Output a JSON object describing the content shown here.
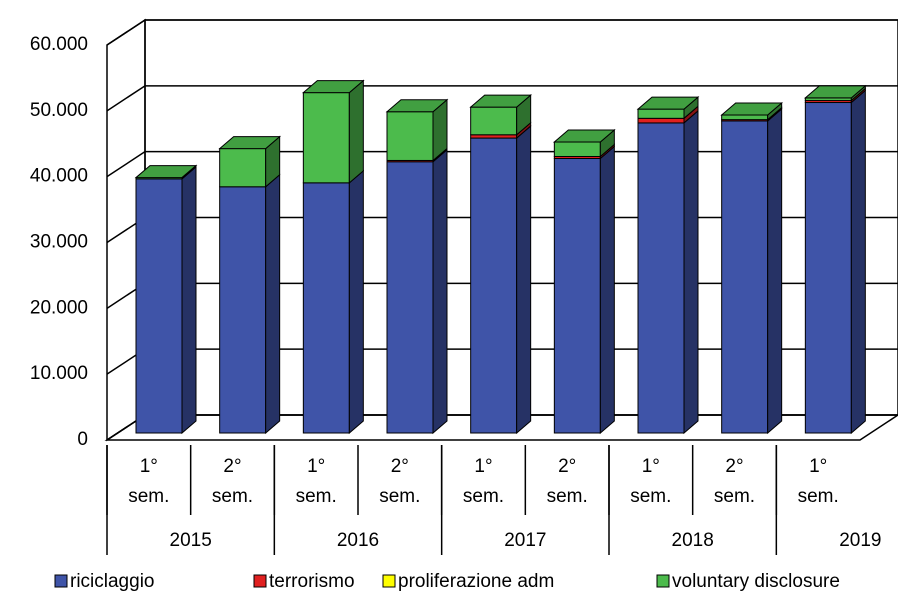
{
  "chart_data": {
    "type": "bar3d_stacked",
    "categories": [
      [
        "1°",
        "sem."
      ],
      [
        "2°",
        "sem."
      ],
      [
        "1°",
        "sem."
      ],
      [
        "2°",
        "sem."
      ],
      [
        "1°",
        "sem."
      ],
      [
        "2°",
        "sem."
      ],
      [
        "1°",
        "sem."
      ],
      [
        "2°",
        "sem."
      ],
      [
        "1°",
        "sem."
      ]
    ],
    "groups": [
      {
        "name": "2015",
        "size": 2
      },
      {
        "name": "2016",
        "size": 2
      },
      {
        "name": "2017",
        "size": 2
      },
      {
        "name": "2018",
        "size": 2
      },
      {
        "name": "2019",
        "size": 1
      }
    ],
    "series": [
      {
        "name": "riciclaggio",
        "color": "#3f54a8",
        "values": [
          38600,
          37400,
          38000,
          41200,
          44800,
          41700,
          47100,
          47400,
          50200
        ]
      },
      {
        "name": "terrorismo",
        "color": "#e02020",
        "values": [
          0,
          0,
          0,
          200,
          500,
          300,
          700,
          200,
          300
        ]
      },
      {
        "name": "proliferazione adm",
        "color": "#ffff00",
        "values": [
          0,
          0,
          0,
          0,
          0,
          0,
          0,
          0,
          0
        ]
      },
      {
        "name": "voluntary disclosure",
        "color": "#4cbb4c",
        "values": [
          200,
          5800,
          13700,
          7400,
          4200,
          2200,
          1400,
          700,
          400
        ]
      }
    ],
    "ylim": [
      0,
      60000
    ],
    "yticks": [
      0,
      {
        "value": 10000,
        "label": "10.000"
      },
      {
        "value": 20000,
        "label": "20.000"
      },
      {
        "value": 30000,
        "label": "30.000"
      },
      {
        "value": 40000,
        "label": "40.000"
      },
      {
        "value": 50000,
        "label": "50.000"
      },
      {
        "value": 60000,
        "label": "60.000"
      }
    ],
    "grid": true,
    "legend": "bottom"
  }
}
